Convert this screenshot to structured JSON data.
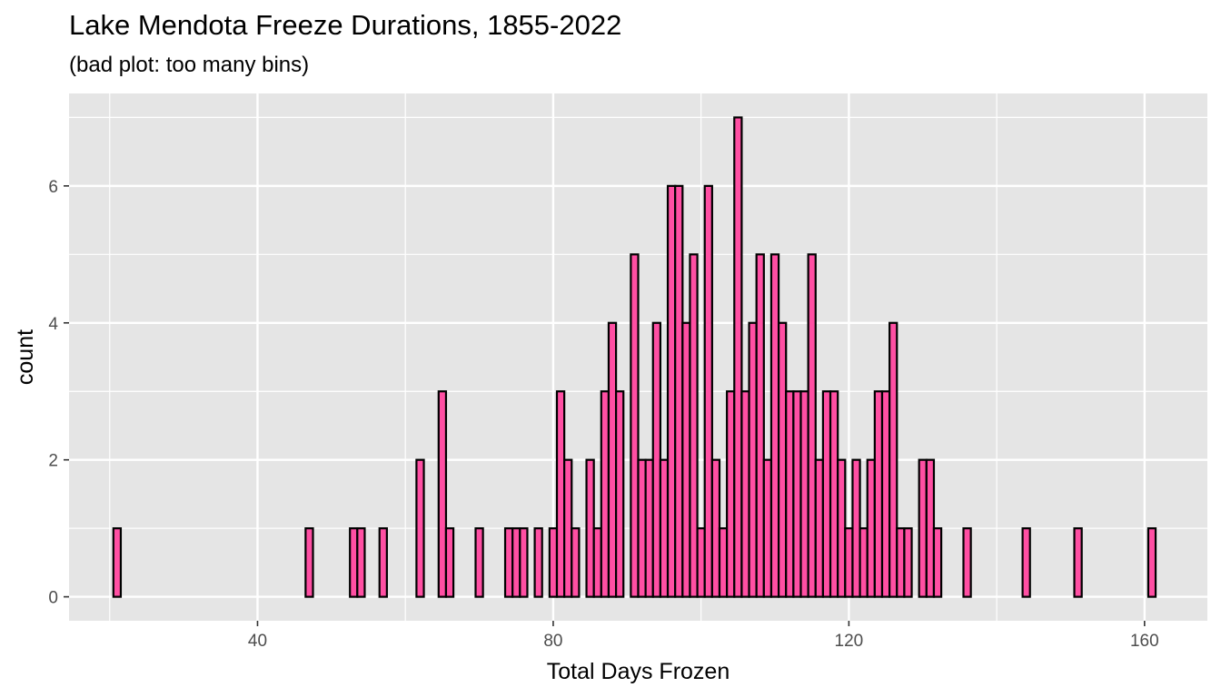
{
  "chart_data": {
    "type": "bar",
    "title": "Lake Mendota Freeze Durations, 1855-2022",
    "subtitle": "(bad plot: too many bins)",
    "xlabel": "Total Days Frozen",
    "ylabel": "count",
    "xlim": [
      14.5,
      168.5
    ],
    "ylim": [
      -0.35,
      7.35
    ],
    "x_ticks": [
      40,
      80,
      120,
      160
    ],
    "y_ticks": [
      0,
      2,
      4,
      6
    ],
    "grid": true,
    "bin_width": 1,
    "bar_fill": "#ff4fa3",
    "bar_outline": "#000000",
    "panel_background": "#e5e5e5",
    "grid_color": "#ffffff",
    "bins": [
      {
        "x": 21,
        "count": 1
      },
      {
        "x": 22,
        "count": 0
      },
      {
        "x": 23,
        "count": 0
      },
      {
        "x": 24,
        "count": 0
      },
      {
        "x": 25,
        "count": 0
      },
      {
        "x": 26,
        "count": 0
      },
      {
        "x": 27,
        "count": 0
      },
      {
        "x": 28,
        "count": 0
      },
      {
        "x": 29,
        "count": 0
      },
      {
        "x": 30,
        "count": 0
      },
      {
        "x": 31,
        "count": 0
      },
      {
        "x": 32,
        "count": 0
      },
      {
        "x": 33,
        "count": 0
      },
      {
        "x": 34,
        "count": 0
      },
      {
        "x": 35,
        "count": 0
      },
      {
        "x": 36,
        "count": 0
      },
      {
        "x": 37,
        "count": 0
      },
      {
        "x": 38,
        "count": 0
      },
      {
        "x": 39,
        "count": 0
      },
      {
        "x": 40,
        "count": 0
      },
      {
        "x": 41,
        "count": 0
      },
      {
        "x": 42,
        "count": 0
      },
      {
        "x": 43,
        "count": 0
      },
      {
        "x": 44,
        "count": 0
      },
      {
        "x": 45,
        "count": 0
      },
      {
        "x": 46,
        "count": 0
      },
      {
        "x": 47,
        "count": 1
      },
      {
        "x": 48,
        "count": 0
      },
      {
        "x": 49,
        "count": 0
      },
      {
        "x": 50,
        "count": 0
      },
      {
        "x": 51,
        "count": 0
      },
      {
        "x": 52,
        "count": 0
      },
      {
        "x": 53,
        "count": 1
      },
      {
        "x": 54,
        "count": 1
      },
      {
        "x": 55,
        "count": 0
      },
      {
        "x": 56,
        "count": 0
      },
      {
        "x": 57,
        "count": 1
      },
      {
        "x": 58,
        "count": 0
      },
      {
        "x": 59,
        "count": 0
      },
      {
        "x": 60,
        "count": 0
      },
      {
        "x": 61,
        "count": 0
      },
      {
        "x": 62,
        "count": 2
      },
      {
        "x": 63,
        "count": 0
      },
      {
        "x": 64,
        "count": 0
      },
      {
        "x": 65,
        "count": 3
      },
      {
        "x": 66,
        "count": 1
      },
      {
        "x": 67,
        "count": 0
      },
      {
        "x": 68,
        "count": 0
      },
      {
        "x": 69,
        "count": 0
      },
      {
        "x": 70,
        "count": 1
      },
      {
        "x": 71,
        "count": 0
      },
      {
        "x": 72,
        "count": 0
      },
      {
        "x": 73,
        "count": 0
      },
      {
        "x": 74,
        "count": 1
      },
      {
        "x": 75,
        "count": 1
      },
      {
        "x": 76,
        "count": 1
      },
      {
        "x": 77,
        "count": 0
      },
      {
        "x": 78,
        "count": 1
      },
      {
        "x": 79,
        "count": 0
      },
      {
        "x": 80,
        "count": 1
      },
      {
        "x": 81,
        "count": 3
      },
      {
        "x": 82,
        "count": 2
      },
      {
        "x": 83,
        "count": 1
      },
      {
        "x": 84,
        "count": 0
      },
      {
        "x": 85,
        "count": 2
      },
      {
        "x": 86,
        "count": 1
      },
      {
        "x": 87,
        "count": 3
      },
      {
        "x": 88,
        "count": 4
      },
      {
        "x": 89,
        "count": 3
      },
      {
        "x": 90,
        "count": 0
      },
      {
        "x": 91,
        "count": 5
      },
      {
        "x": 92,
        "count": 2
      },
      {
        "x": 93,
        "count": 2
      },
      {
        "x": 94,
        "count": 4
      },
      {
        "x": 95,
        "count": 2
      },
      {
        "x": 96,
        "count": 6
      },
      {
        "x": 97,
        "count": 6
      },
      {
        "x": 98,
        "count": 4
      },
      {
        "x": 99,
        "count": 5
      },
      {
        "x": 100,
        "count": 1
      },
      {
        "x": 101,
        "count": 6
      },
      {
        "x": 102,
        "count": 2
      },
      {
        "x": 103,
        "count": 1
      },
      {
        "x": 104,
        "count": 3
      },
      {
        "x": 105,
        "count": 7
      },
      {
        "x": 106,
        "count": 3
      },
      {
        "x": 107,
        "count": 4
      },
      {
        "x": 108,
        "count": 5
      },
      {
        "x": 109,
        "count": 2
      },
      {
        "x": 110,
        "count": 5
      },
      {
        "x": 111,
        "count": 4
      },
      {
        "x": 112,
        "count": 3
      },
      {
        "x": 113,
        "count": 3
      },
      {
        "x": 114,
        "count": 3
      },
      {
        "x": 115,
        "count": 5
      },
      {
        "x": 116,
        "count": 2
      },
      {
        "x": 117,
        "count": 3
      },
      {
        "x": 118,
        "count": 3
      },
      {
        "x": 119,
        "count": 2
      },
      {
        "x": 120,
        "count": 1
      },
      {
        "x": 121,
        "count": 2
      },
      {
        "x": 122,
        "count": 1
      },
      {
        "x": 123,
        "count": 2
      },
      {
        "x": 124,
        "count": 3
      },
      {
        "x": 125,
        "count": 3
      },
      {
        "x": 126,
        "count": 4
      },
      {
        "x": 127,
        "count": 1
      },
      {
        "x": 128,
        "count": 1
      },
      {
        "x": 129,
        "count": 0
      },
      {
        "x": 130,
        "count": 2
      },
      {
        "x": 131,
        "count": 2
      },
      {
        "x": 132,
        "count": 1
      },
      {
        "x": 133,
        "count": 0
      },
      {
        "x": 134,
        "count": 0
      },
      {
        "x": 135,
        "count": 0
      },
      {
        "x": 136,
        "count": 1
      },
      {
        "x": 137,
        "count": 0
      },
      {
        "x": 138,
        "count": 0
      },
      {
        "x": 139,
        "count": 0
      },
      {
        "x": 140,
        "count": 0
      },
      {
        "x": 141,
        "count": 0
      },
      {
        "x": 142,
        "count": 0
      },
      {
        "x": 143,
        "count": 0
      },
      {
        "x": 144,
        "count": 1
      },
      {
        "x": 145,
        "count": 0
      },
      {
        "x": 146,
        "count": 0
      },
      {
        "x": 147,
        "count": 0
      },
      {
        "x": 148,
        "count": 0
      },
      {
        "x": 149,
        "count": 0
      },
      {
        "x": 150,
        "count": 0
      },
      {
        "x": 151,
        "count": 1
      },
      {
        "x": 152,
        "count": 0
      },
      {
        "x": 153,
        "count": 0
      },
      {
        "x": 154,
        "count": 0
      },
      {
        "x": 155,
        "count": 0
      },
      {
        "x": 156,
        "count": 0
      },
      {
        "x": 157,
        "count": 0
      },
      {
        "x": 158,
        "count": 0
      },
      {
        "x": 159,
        "count": 0
      },
      {
        "x": 160,
        "count": 0
      },
      {
        "x": 161,
        "count": 1
      }
    ]
  }
}
